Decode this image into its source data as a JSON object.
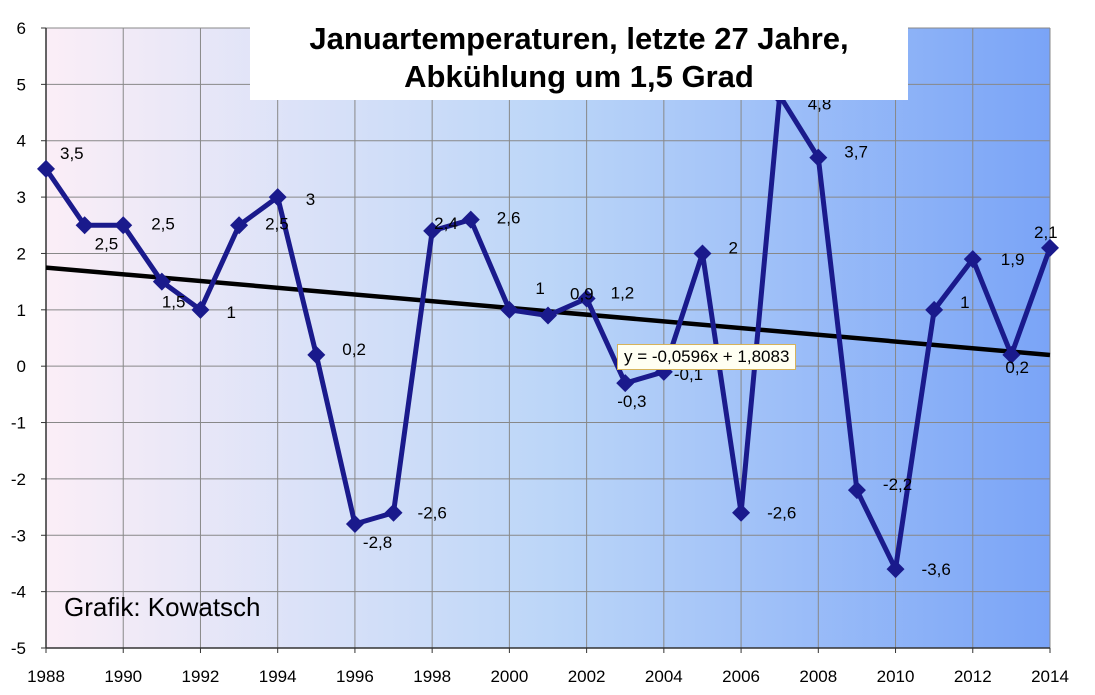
{
  "title_lines": [
    "Januartemperaturen, letzte 27 Jahre,",
    "Abkühlung um 1,5 Grad"
  ],
  "credit": "Grafik: Kowatsch",
  "trendline_label": "y = -0,0596x + 1,8083",
  "colors": {
    "series": "#1a1a8c",
    "trend": "#000000",
    "grid": "#888888",
    "bg_left": "#fbeef7",
    "bg_right": "#7aa4f7"
  },
  "chart_data": {
    "type": "line",
    "x": [
      1988,
      1989,
      1990,
      1991,
      1992,
      1993,
      1994,
      1995,
      1996,
      1997,
      1998,
      1999,
      2000,
      2001,
      2002,
      2003,
      2004,
      2005,
      2006,
      2007,
      2008,
      2009,
      2010,
      2011,
      2012,
      2013,
      2014
    ],
    "values": [
      3.5,
      2.5,
      2.5,
      1.5,
      1,
      2.5,
      3,
      0.2,
      -2.8,
      -2.6,
      2.4,
      2.6,
      1,
      0.9,
      1.2,
      -0.3,
      -0.1,
      2,
      -2.6,
      4.8,
      3.7,
      -2.2,
      -3.6,
      1,
      1.9,
      0.2,
      2.1
    ],
    "data_labels": [
      "3,5",
      "2,5",
      "2,5",
      "1,5",
      "1",
      "2,5",
      "3",
      "0,2",
      "-2,8",
      "-2,6",
      "2,4",
      "2,6",
      "1",
      "0,9",
      "1,2",
      "-0,3",
      "-0,1",
      "2",
      "-2,6",
      "4,8",
      "3,7",
      "-2,2",
      "-3,6",
      "1",
      "1,9",
      "0,2",
      "2,1"
    ],
    "trendline": {
      "slope": -0.0596,
      "intercept": 1.8083
    },
    "ylim": [
      -5,
      6
    ],
    "yticks": [
      -5,
      -4,
      -3,
      -2,
      -1,
      0,
      1,
      2,
      3,
      4,
      5,
      6
    ],
    "xlim": [
      1988,
      2014
    ],
    "xticks": [
      1988,
      1990,
      1992,
      1994,
      1996,
      1998,
      2000,
      2002,
      2004,
      2006,
      2008,
      2010,
      2012,
      2014
    ],
    "grid": true,
    "xlabel": "",
    "ylabel": ""
  }
}
